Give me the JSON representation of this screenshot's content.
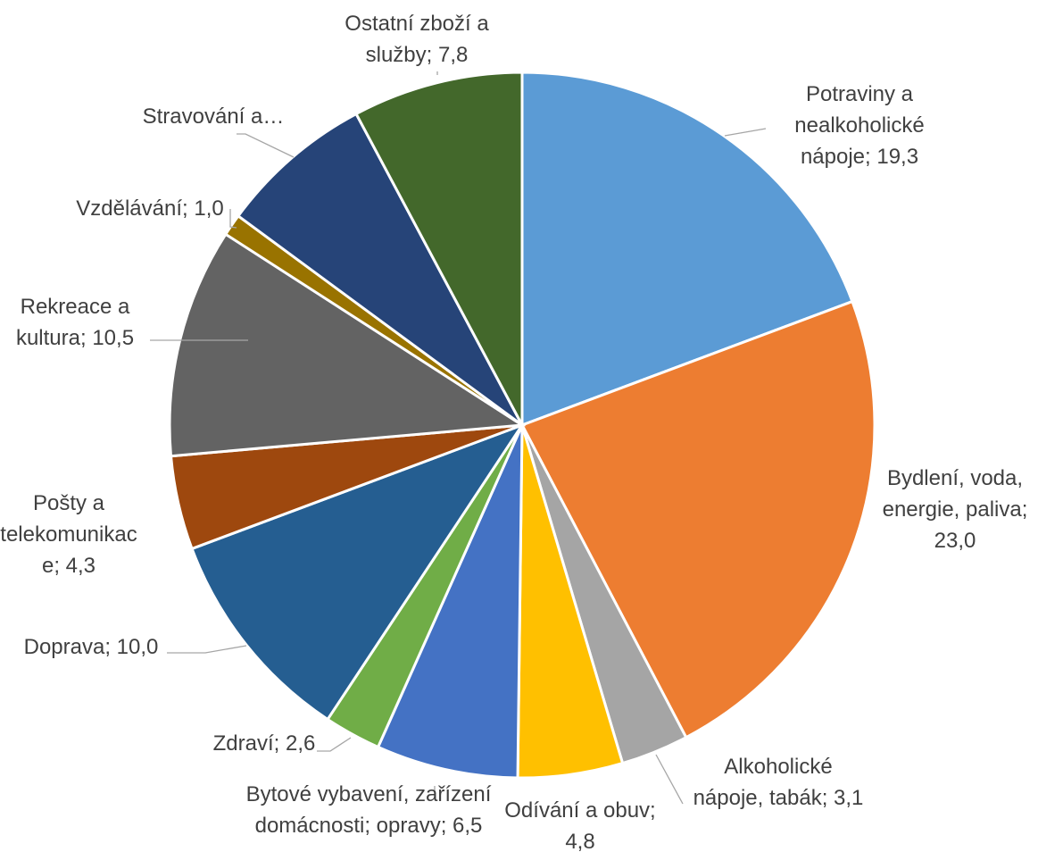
{
  "chart_data": {
    "type": "pie",
    "title": "",
    "start_angle_deg": 0,
    "direction": "clockwise",
    "legend": "none",
    "slices": [
      {
        "name": "Potraviny a nealkoholické nápoje",
        "value": 19.3,
        "color": "#5b9bd5",
        "label_lines": [
          "Potraviny a",
          "nealkoholické",
          "nápoje; 19,3"
        ]
      },
      {
        "name": "Bydlení, voda, energie, paliva",
        "value": 23.0,
        "color": "#ed7d31",
        "label_lines": [
          "Bydlení, voda,",
          "energie, paliva;",
          "23,0"
        ]
      },
      {
        "name": "Alkoholické nápoje, tabák",
        "value": 3.1,
        "color": "#a5a5a5",
        "label_lines": [
          "Alkoholické",
          "nápoje, tabák; 3,1"
        ]
      },
      {
        "name": "Odívání a obuv",
        "value": 4.8,
        "color": "#ffc000",
        "label_lines": [
          "Odívání a obuv;",
          "4,8"
        ]
      },
      {
        "name": "Bytové vybavení, zařízení domácnosti; opravy",
        "value": 6.5,
        "color": "#4472c4",
        "label_lines": [
          "Bytové vybavení, zařízení",
          "domácnosti; opravy; 6,5"
        ]
      },
      {
        "name": "Zdraví",
        "value": 2.6,
        "color": "#70ad47",
        "label_lines": [
          "Zdraví; 2,6"
        ]
      },
      {
        "name": "Doprava",
        "value": 10.0,
        "color": "#255e91",
        "label_lines": [
          "Doprava; 10,0"
        ]
      },
      {
        "name": "Pošty a telekomunikace",
        "value": 4.3,
        "color": "#9e480e",
        "label_lines": [
          "Pošty a",
          "telekomunikac",
          "e; 4,3"
        ]
      },
      {
        "name": "Rekreace a kultura",
        "value": 10.5,
        "color": "#636363",
        "label_lines": [
          "Rekreace a",
          "kultura; 10,5"
        ]
      },
      {
        "name": "Vzdělávání",
        "value": 1.0,
        "color": "#997300",
        "label_lines": [
          "Vzdělávání; 1,0"
        ]
      },
      {
        "name": "Stravování a...",
        "value": 7.1,
        "color": "#264478",
        "label_lines": [
          "Stravování a…"
        ]
      },
      {
        "name": "Ostatní zboží a služby",
        "value": 7.8,
        "color": "#43682b",
        "label_lines": [
          "Ostatní zboží a",
          "služby; 7,8"
        ]
      }
    ]
  }
}
